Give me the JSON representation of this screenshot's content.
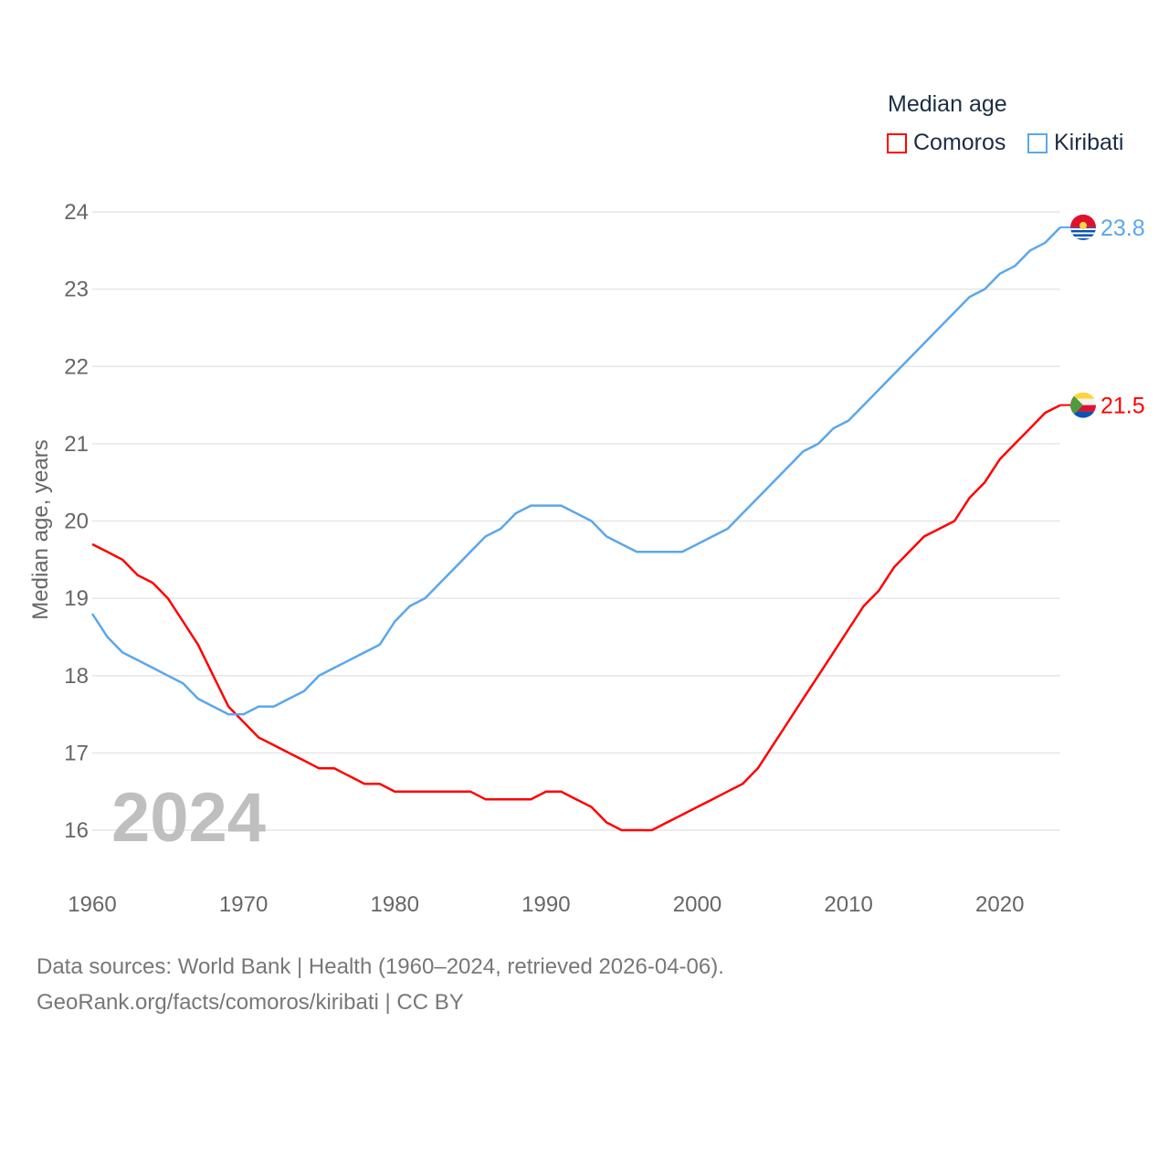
{
  "chart_data": {
    "type": "line",
    "legend_title": "Median age",
    "ylabel": "Median age, years",
    "xlabel": "",
    "ylim": [
      16,
      24
    ],
    "xlim": [
      1960,
      2024
    ],
    "yticks": [
      16,
      17,
      18,
      19,
      20,
      21,
      22,
      23,
      24
    ],
    "xticks": [
      1960,
      1970,
      1980,
      1990,
      2000,
      2010,
      2020
    ],
    "grid": true,
    "legend_position": "top-right",
    "year_label": "2024",
    "x": [
      1960,
      1961,
      1962,
      1963,
      1964,
      1965,
      1966,
      1967,
      1968,
      1969,
      1970,
      1971,
      1972,
      1973,
      1974,
      1975,
      1976,
      1977,
      1978,
      1979,
      1980,
      1981,
      1982,
      1983,
      1984,
      1985,
      1986,
      1987,
      1988,
      1989,
      1990,
      1991,
      1992,
      1993,
      1994,
      1995,
      1996,
      1997,
      1998,
      1999,
      2000,
      2001,
      2002,
      2003,
      2004,
      2005,
      2006,
      2007,
      2008,
      2009,
      2010,
      2011,
      2012,
      2013,
      2014,
      2015,
      2016,
      2017,
      2018,
      2019,
      2020,
      2021,
      2022,
      2023,
      2024
    ],
    "series": [
      {
        "name": "Comoros",
        "color": "#ff0000",
        "end_label": "21.5",
        "values": [
          19.7,
          19.6,
          19.5,
          19.3,
          19.2,
          19.0,
          18.7,
          18.4,
          18.0,
          17.6,
          17.4,
          17.2,
          17.1,
          17.0,
          16.9,
          16.8,
          16.8,
          16.7,
          16.6,
          16.6,
          16.5,
          16.5,
          16.5,
          16.5,
          16.5,
          16.5,
          16.4,
          16.4,
          16.4,
          16.4,
          16.5,
          16.5,
          16.4,
          16.3,
          16.1,
          16.0,
          16.0,
          16.0,
          16.1,
          16.2,
          16.3,
          16.4,
          16.5,
          16.6,
          16.8,
          17.1,
          17.4,
          17.7,
          18.0,
          18.3,
          18.6,
          18.9,
          19.1,
          19.4,
          19.6,
          19.8,
          19.9,
          20.0,
          20.3,
          20.5,
          20.8,
          21.0,
          21.2,
          21.4,
          21.5
        ]
      },
      {
        "name": "Kiribati",
        "color": "#5aa7ea",
        "end_label": "23.8",
        "values": [
          18.8,
          18.5,
          18.3,
          18.2,
          18.1,
          18.0,
          17.9,
          17.7,
          17.6,
          17.5,
          17.5,
          17.6,
          17.6,
          17.7,
          17.8,
          18.0,
          18.1,
          18.2,
          18.3,
          18.4,
          18.7,
          18.9,
          19.0,
          19.2,
          19.4,
          19.6,
          19.8,
          19.9,
          20.1,
          20.2,
          20.2,
          20.2,
          20.1,
          20.0,
          19.8,
          19.7,
          19.6,
          19.6,
          19.6,
          19.6,
          19.7,
          19.8,
          19.9,
          20.1,
          20.3,
          20.5,
          20.7,
          20.9,
          21.0,
          21.2,
          21.3,
          21.5,
          21.7,
          21.9,
          22.1,
          22.3,
          22.5,
          22.7,
          22.9,
          23.0,
          23.2,
          23.3,
          23.5,
          23.6,
          23.8
        ]
      }
    ]
  },
  "footer": {
    "line1": "Data sources: World Bank | Health (1960–2024, retrieved 2026-04-06).",
    "line2": "GeoRank.org/facts/comoros/kiribati | CC BY"
  }
}
